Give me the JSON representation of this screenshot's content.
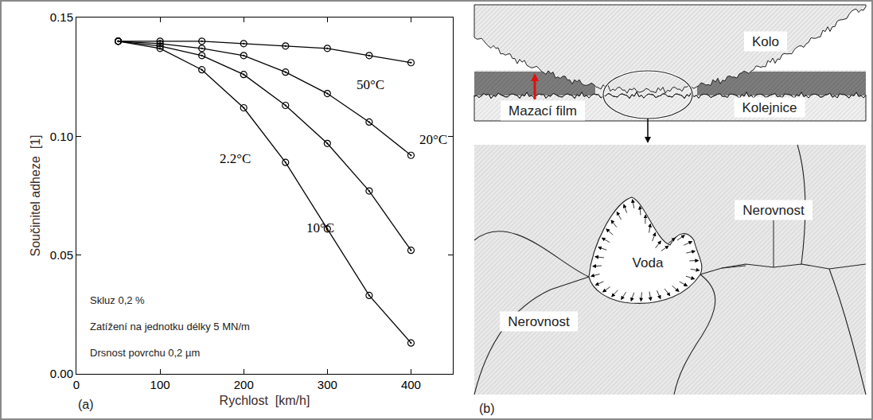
{
  "chart_data": {
    "type": "line",
    "panel_label": "(a)",
    "x_label": "Rychlost  [km/h]",
    "y_label": "Součinitel adheze  [1]",
    "x": [
      50,
      100,
      150,
      200,
      250,
      300,
      350,
      400
    ],
    "series": [
      {
        "name": "50°C",
        "color": "#000000",
        "marker": "open_circle_dot",
        "line_style": "solid",
        "values": [
          0.14,
          0.14,
          0.14,
          0.139,
          0.138,
          0.137,
          0.134,
          0.131
        ]
      },
      {
        "name": "20°C",
        "color": "#000000",
        "marker": "open_circle_dot",
        "line_style": "solid",
        "values": [
          0.14,
          0.139,
          0.137,
          0.134,
          0.127,
          0.118,
          0.106,
          0.092
        ]
      },
      {
        "name": "10°C",
        "color": "#000000",
        "marker": "open_circle_dot",
        "line_style": "solid",
        "values": [
          0.14,
          0.138,
          0.134,
          0.126,
          0.113,
          0.097,
          0.077,
          0.052
        ]
      },
      {
        "name": "2.2°C",
        "color": "#000000",
        "marker": "open_circle_dot",
        "line_style": "solid",
        "values": [
          0.14,
          0.137,
          0.128,
          0.112,
          0.089,
          0.061,
          0.033,
          0.013
        ]
      }
    ],
    "annotations": [
      "Skluz 0,2 %",
      "Zatížení na jednotku délky 5 MN/m",
      "Drsnost povrchu 0,2 µm"
    ],
    "xlim": [
      0,
      450
    ],
    "xticks": [
      0,
      100,
      200,
      300,
      400
    ],
    "ylim": [
      0,
      0.15
    ],
    "yticks": [
      {
        "value": 0,
        "label": "0.00"
      },
      0.05,
      {
        "value": 0.1,
        "label": "0.10"
      },
      0.15
    ],
    "grid": false
  },
  "diagram": {
    "panel_label": "(b)",
    "labels": {
      "wheel": "Kolo",
      "film": "Mazací film",
      "rail": "Kolejnice",
      "asperity_upper": "Nerovnost",
      "asperity_lower": "Nerovnost",
      "water": "Voda"
    }
  }
}
